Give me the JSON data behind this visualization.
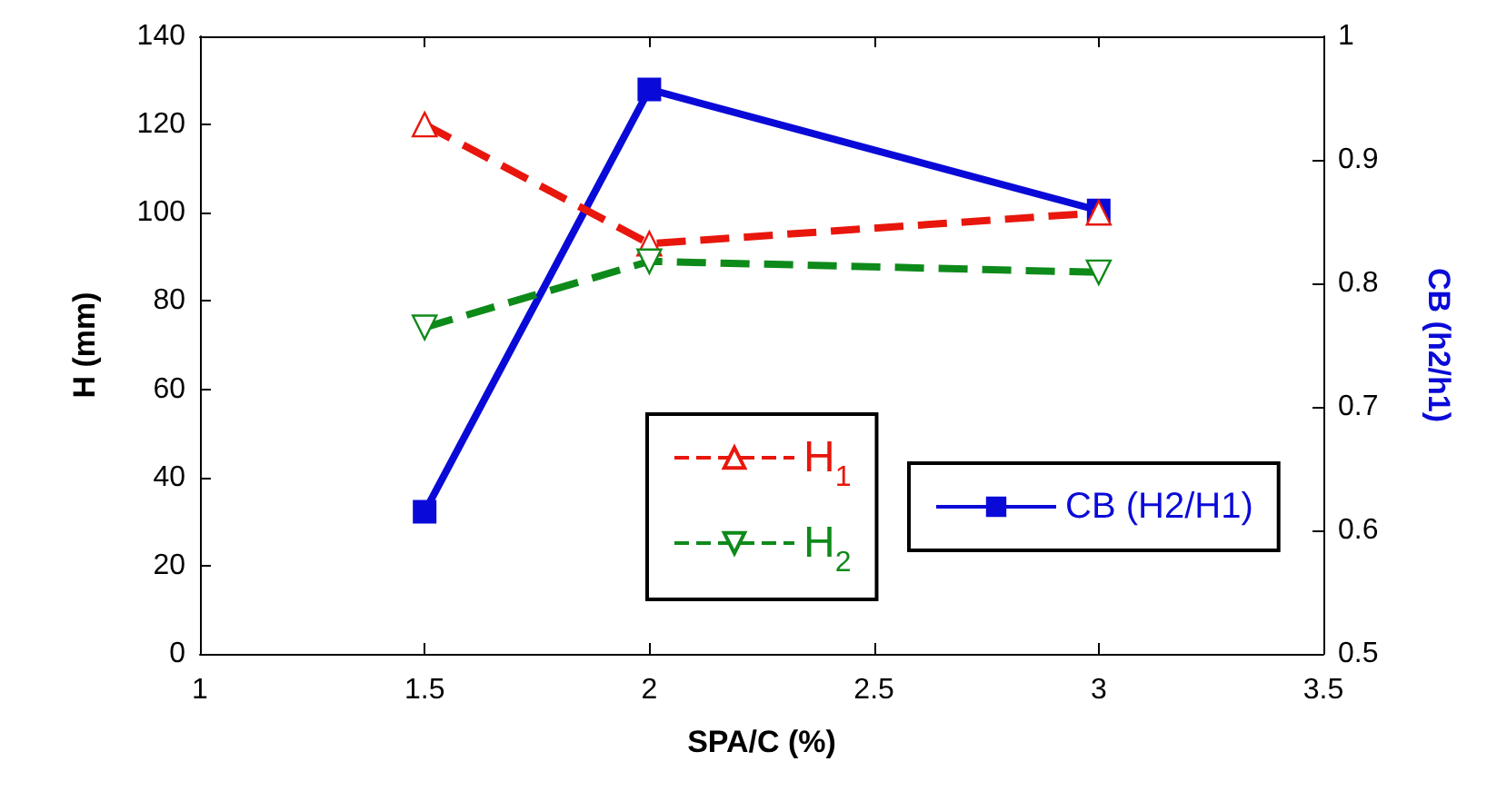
{
  "chart_data": {
    "type": "line",
    "xlabel": "SPA/C (%)",
    "ylabel": "H (mm)",
    "y2label": "CB (h2/h1)",
    "x": [
      1.5,
      2,
      3
    ],
    "series": [
      {
        "name": "H$_{1}$",
        "color": "#e8160c",
        "values": [
          120,
          93,
          100
        ],
        "marker": "triangle",
        "line_style": "dashed"
      },
      {
        "name": "H$_{2}$",
        "color": "#0e8a1a",
        "values": [
          74,
          89,
          86.5
        ],
        "marker": "triangle-down",
        "line_style": "dashed"
      },
      {
        "name": "CB (H2/H1)",
        "color": "#0a0ad8",
        "values": [
          0.615,
          0.957,
          0.859
        ],
        "marker": "square",
        "line_style": "solid",
        "axis": "y2"
      }
    ],
    "xlim": [
      1,
      3.5
    ],
    "xticks": [
      1,
      1.5,
      2,
      2.5,
      3,
      3.5
    ],
    "ylim": [
      0,
      140
    ],
    "yticks": [
      0,
      20,
      40,
      60,
      80,
      100,
      120,
      140
    ],
    "y2lim": [
      0.5,
      1
    ],
    "y2ticks": [
      0.5,
      0.6,
      0.7,
      0.8,
      0.9,
      1
    ],
    "grid": false,
    "legend": "bottom right"
  }
}
